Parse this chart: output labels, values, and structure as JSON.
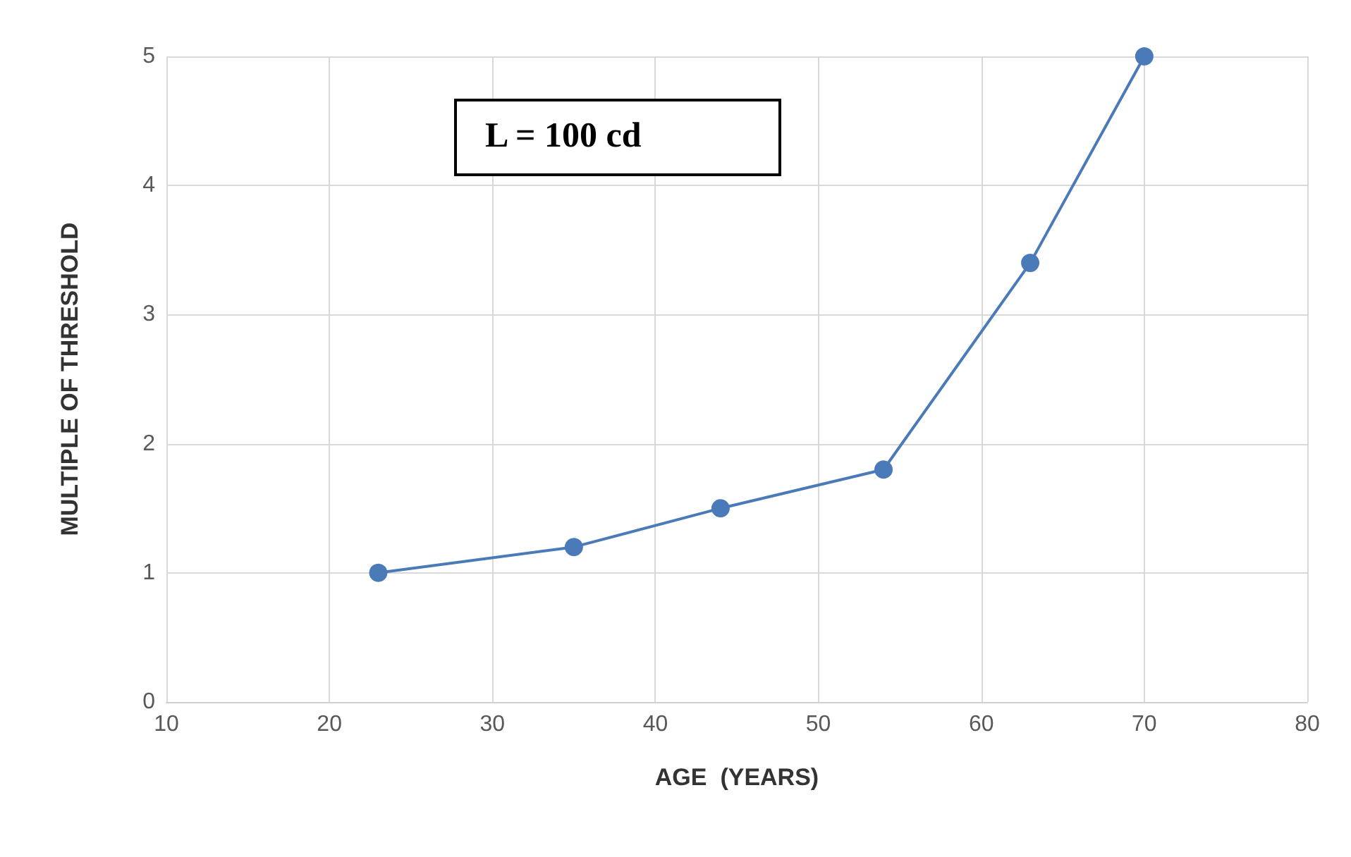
{
  "chart_data": {
    "type": "line",
    "xlabel": "AGE  (YEARS)",
    "ylabel": "MULTIPLE OF THRESHOLD",
    "x": [
      23,
      35,
      44,
      54,
      63,
      70
    ],
    "series": [
      {
        "color": "#4a7ab8",
        "values": [
          1,
          1.2,
          1.5,
          1.8,
          3.4,
          5
        ]
      }
    ],
    "xlim": [
      10,
      80
    ],
    "xticks": [
      10,
      20,
      30,
      40,
      50,
      60,
      70,
      80
    ],
    "ylim": [
      0,
      5
    ],
    "yticks": [
      0,
      1,
      2,
      3,
      4,
      5
    ],
    "grid": true,
    "marker": "circle",
    "line_style": "solid",
    "annotations": [
      "L = 100 cd"
    ]
  }
}
